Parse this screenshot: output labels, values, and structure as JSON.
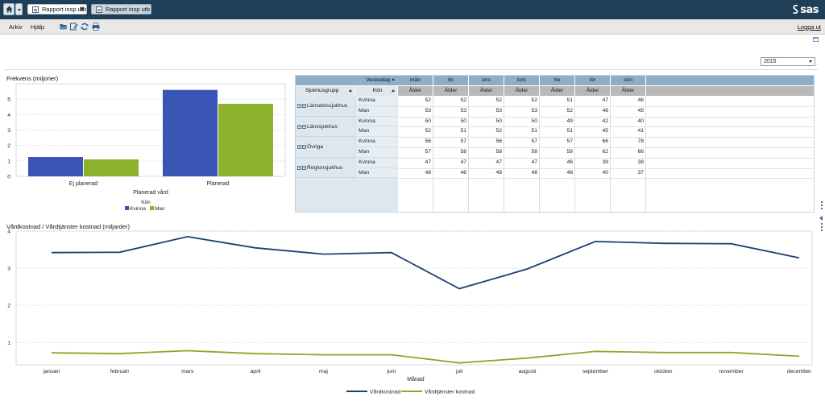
{
  "tabs": [
    {
      "label": "Rapport insp utb",
      "active": true
    },
    {
      "label": "Rapport insp utb",
      "active": false
    }
  ],
  "brand": "sas",
  "menu": {
    "items": [
      "Arkiv",
      "Hjälp"
    ],
    "logout": "Logga ut"
  },
  "toolbar_icons": [
    "folder-open-icon",
    "edit-icon",
    "refresh-icon",
    "print-icon"
  ],
  "year_select": {
    "value": "2015"
  },
  "colors": {
    "kvinna": "#3a55b4",
    "man": "#8cb22d",
    "vardkostnad": "#1d3f78",
    "vardtjanster": "#8ba826"
  },
  "bar_chart": {
    "title": "Frekvens (miljoner)",
    "chart_data": {
      "type": "bar",
      "categories": [
        "Ej planerad",
        "Planerad"
      ],
      "series": [
        {
          "name": "Kvinna",
          "values": [
            1.25,
            5.6
          ]
        },
        {
          "name": "Man",
          "values": [
            1.1,
            4.7
          ]
        }
      ],
      "xlabel": "Planerad vård",
      "legend_title": "Kön",
      "legend_position": "bottom",
      "yticks": [
        "0",
        "1",
        "2",
        "3",
        "4",
        "5"
      ],
      "ylim": [
        0,
        6
      ],
      "grid": true
    }
  },
  "crosstab": {
    "column_header": "Veckodag",
    "days": [
      "mån",
      "tis",
      "ons",
      "tors",
      "fre",
      "lör",
      "sön"
    ],
    "measure": "Ålder",
    "row_headers": [
      "Sjukhusgrupp",
      "Kön"
    ],
    "groups": [
      {
        "name": "Länsdelssjukhus",
        "rows": [
          {
            "kon": "Kvinna",
            "values": [
              "52",
              "52",
              "52",
              "52",
              "51",
              "47",
              "46"
            ]
          },
          {
            "kon": "Man",
            "values": [
              "53",
              "53",
              "53",
              "53",
              "52",
              "46",
              "45"
            ]
          }
        ]
      },
      {
        "name": "Länssjukhus",
        "rows": [
          {
            "kon": "Kvinna",
            "values": [
              "50",
              "50",
              "50",
              "50",
              "49",
              "42",
              "40"
            ]
          },
          {
            "kon": "Man",
            "values": [
              "52",
              "51",
              "52",
              "51",
              "51",
              "45",
              "41"
            ]
          }
        ]
      },
      {
        "name": "Övriga",
        "rows": [
          {
            "kon": "Kvinna",
            "values": [
              "56",
              "57",
              "56",
              "57",
              "57",
              "66",
              "78"
            ]
          },
          {
            "kon": "Man",
            "values": [
              "57",
              "58",
              "58",
              "58",
              "58",
              "62",
              "66"
            ]
          }
        ]
      },
      {
        "name": "Regionsjukhus",
        "rows": [
          {
            "kon": "Kvinna",
            "values": [
              "47",
              "47",
              "47",
              "47",
              "46",
              "39",
              "38"
            ]
          },
          {
            "kon": "Man",
            "values": [
              "48",
              "48",
              "48",
              "48",
              "48",
              "40",
              "37"
            ]
          }
        ]
      }
    ]
  },
  "line_chart": {
    "title": "Vårdkostnad / Vårdtjänster kostnad (miljarder)",
    "chart_data": {
      "type": "line",
      "categories": [
        "januari",
        "februari",
        "mars",
        "april",
        "maj",
        "juni",
        "juli",
        "augusti",
        "september",
        "oktober",
        "november",
        "december"
      ],
      "series": [
        {
          "name": "Vårdkostnad",
          "values": [
            3.42,
            3.43,
            3.85,
            3.55,
            3.38,
            3.42,
            2.45,
            2.98,
            3.72,
            3.67,
            3.66,
            3.28
          ]
        },
        {
          "name": "Vårdtjänster kostnad",
          "values": [
            0.72,
            0.7,
            0.78,
            0.7,
            0.67,
            0.67,
            0.45,
            0.58,
            0.76,
            0.73,
            0.73,
            0.63
          ]
        }
      ],
      "xlabel": "Månad",
      "yticks": [
        "1",
        "2",
        "3",
        "4"
      ],
      "ylim": [
        0.4,
        4
      ],
      "legend_position": "bottom",
      "grid": true
    }
  }
}
